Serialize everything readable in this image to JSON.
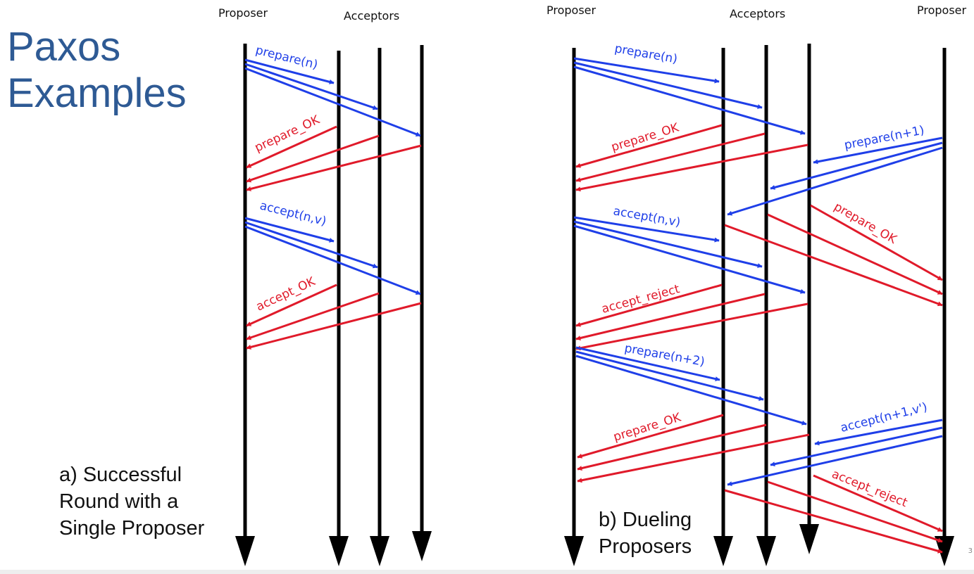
{
  "slide": {
    "title_line1": "Paxos",
    "title_line2": "Examples",
    "page_number": "3"
  },
  "colors": {
    "title": "#2e5a94",
    "request": "#1f3fe8",
    "response": "#e01a2a",
    "timeline": "#000000"
  },
  "diagram_a": {
    "caption_line1": "a)  Successful",
    "caption_line2": "Round with a",
    "caption_line3": "Single Proposer",
    "headers": {
      "proposer": "Proposer",
      "acceptors": "Acceptors"
    },
    "labels": {
      "prepare": "prepare(n)",
      "prepare_ok": "prepare_OK",
      "accept": "accept(n,v)",
      "accept_ok": "accept_OK"
    }
  },
  "diagram_b": {
    "caption_line1": "b) Dueling",
    "caption_line2": "Proposers",
    "headers": {
      "proposer_left": "Proposer",
      "acceptors": "Acceptors",
      "proposer_right": "Proposer"
    },
    "labels": {
      "prepare_n": "prepare(n)",
      "prepare_ok_1": "prepare_OK",
      "prepare_n1": "prepare(n+1)",
      "prepare_ok_right": "prepare_OK",
      "accept_nv": "accept(n,v)",
      "accept_reject_1": "accept_reject",
      "prepare_n2": "prepare(n+2)",
      "prepare_ok_2": "prepare_OK",
      "accept_n1v": "accept(n+1,v')",
      "accept_reject_right": "accept_reject"
    }
  }
}
